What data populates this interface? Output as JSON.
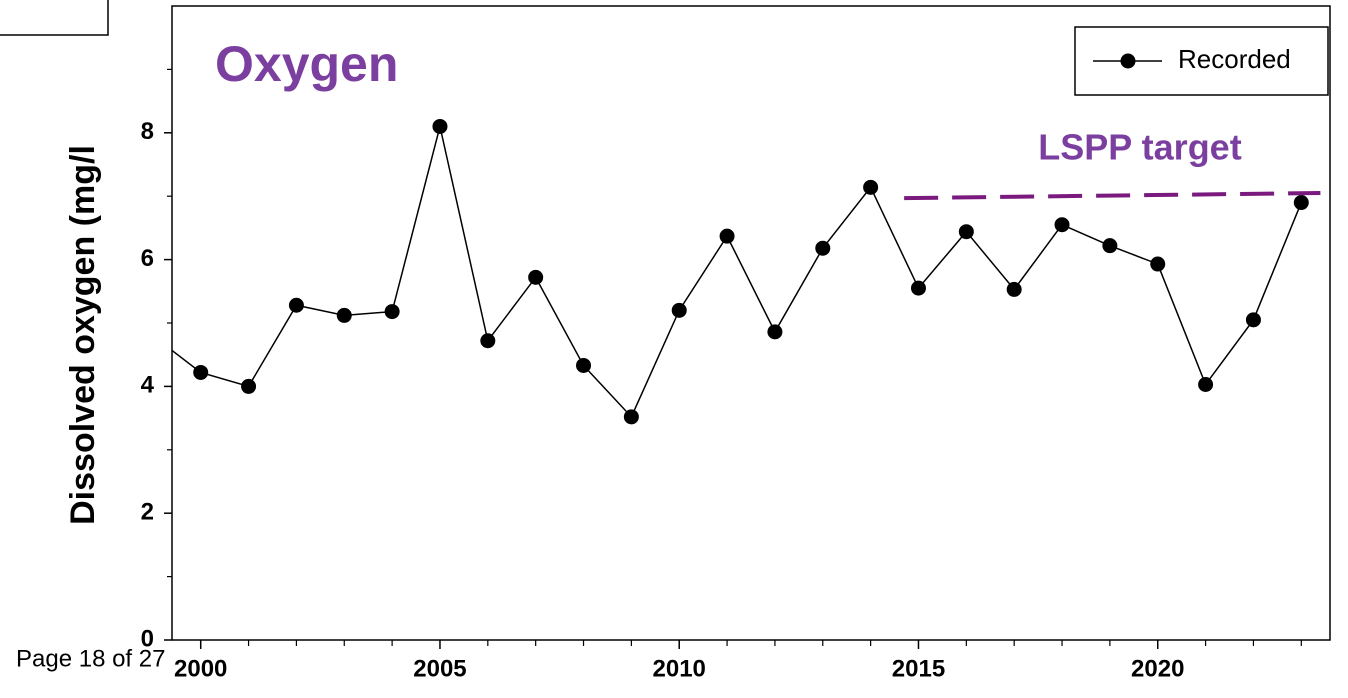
{
  "page_footer": "Page 18 of 27",
  "chart_data": {
    "type": "line",
    "title": "Oxygen",
    "y_label": "Dissolved oxygen (mg/l",
    "series": [
      {
        "name": "Recorded",
        "color": "#000000",
        "markers": true,
        "x": [
          1999,
          2000,
          2001,
          2002,
          2003,
          2004,
          2005,
          2006,
          2007,
          2008,
          2009,
          2010,
          2011,
          2012,
          2013,
          2014,
          2015,
          2016,
          2017,
          2018,
          2019,
          2020,
          2021,
          2022,
          2023
        ],
        "values": [
          4.8,
          4.22,
          4.0,
          5.28,
          5.12,
          5.18,
          8.1,
          4.72,
          5.72,
          4.33,
          3.52,
          5.2,
          6.37,
          4.86,
          6.18,
          7.14,
          5.55,
          6.44,
          5.53,
          6.55,
          6.22,
          5.93,
          4.03,
          5.05,
          6.9
        ]
      },
      {
        "name": "LSPP target",
        "color": "#7b1a7e",
        "dashed": true,
        "markers": false,
        "x": [
          2014.7,
          2023.4
        ],
        "values": [
          6.97,
          7.05
        ]
      }
    ],
    "xlim": [
      1999.4,
      2023.6
    ],
    "ylim": [
      0,
      10
    ],
    "xticks": [
      2000,
      2005,
      2010,
      2015,
      2020
    ],
    "xminorticks": [
      2001,
      2002,
      2003,
      2004,
      2006,
      2007,
      2008,
      2009,
      2011,
      2012,
      2013,
      2014,
      2016,
      2017,
      2018,
      2019,
      2021,
      2022,
      2023
    ],
    "yticks": [
      0,
      2,
      4,
      6,
      8
    ],
    "yminorticks": [
      1,
      3,
      5,
      7,
      9
    ],
    "legend": "upper right"
  }
}
